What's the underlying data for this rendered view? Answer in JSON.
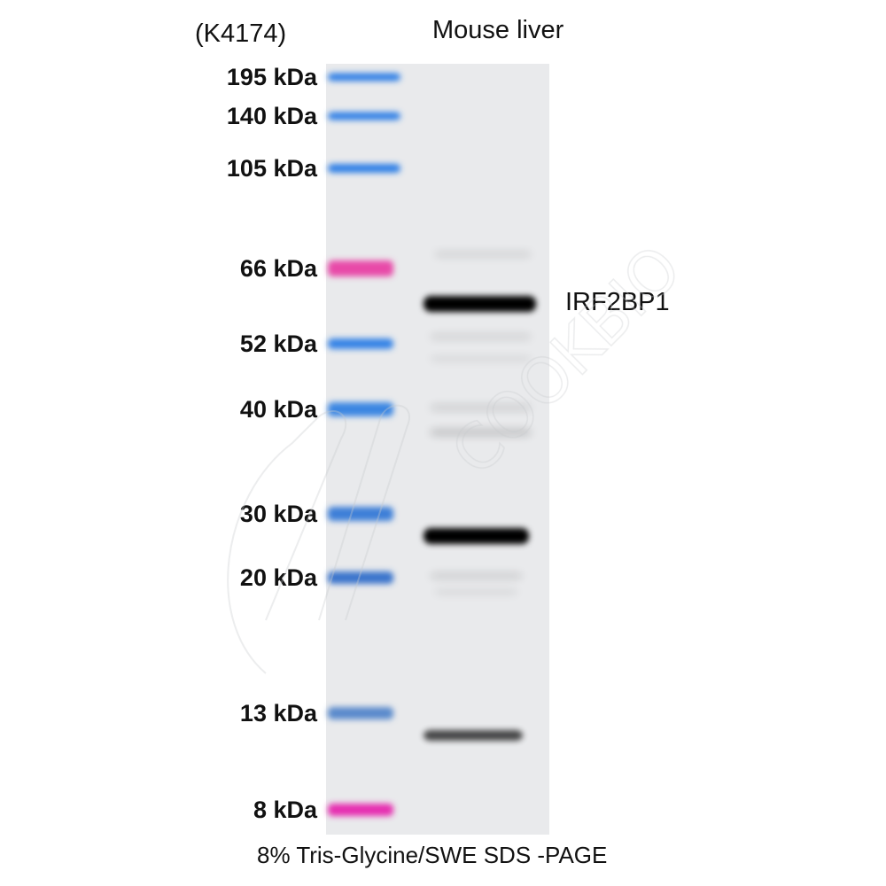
{
  "clone_id": "(K4174)",
  "lane_label": "Mouse liver",
  "target_label": "IRF2BP1",
  "gel_caption": "8% Tris-Glycine/SWE SDS -PAGE",
  "markers": [
    {
      "label": "195 kDa",
      "color": "#2f7fe6"
    },
    {
      "label": "140 kDa",
      "color": "#2f7fe6"
    },
    {
      "label": "105 kDa",
      "color": "#2f7fe6"
    },
    {
      "label": "66 kDa",
      "color": "#e84aa8"
    },
    {
      "label": "52 kDa",
      "color": "#3583e6"
    },
    {
      "label": "40 kDa",
      "color": "#3a86e2"
    },
    {
      "label": "30 kDa",
      "color": "#3d7fd8"
    },
    {
      "label": "20 kDa",
      "color": "#3a74cc"
    },
    {
      "label": "13 kDa",
      "color": "#5a8acc"
    },
    {
      "label": "8 kDa",
      "color": "#e62fb0"
    }
  ],
  "watermark": "科普研 COOKBIO",
  "colors": {
    "membrane": "#e9eaec",
    "band": "#000000"
  }
}
